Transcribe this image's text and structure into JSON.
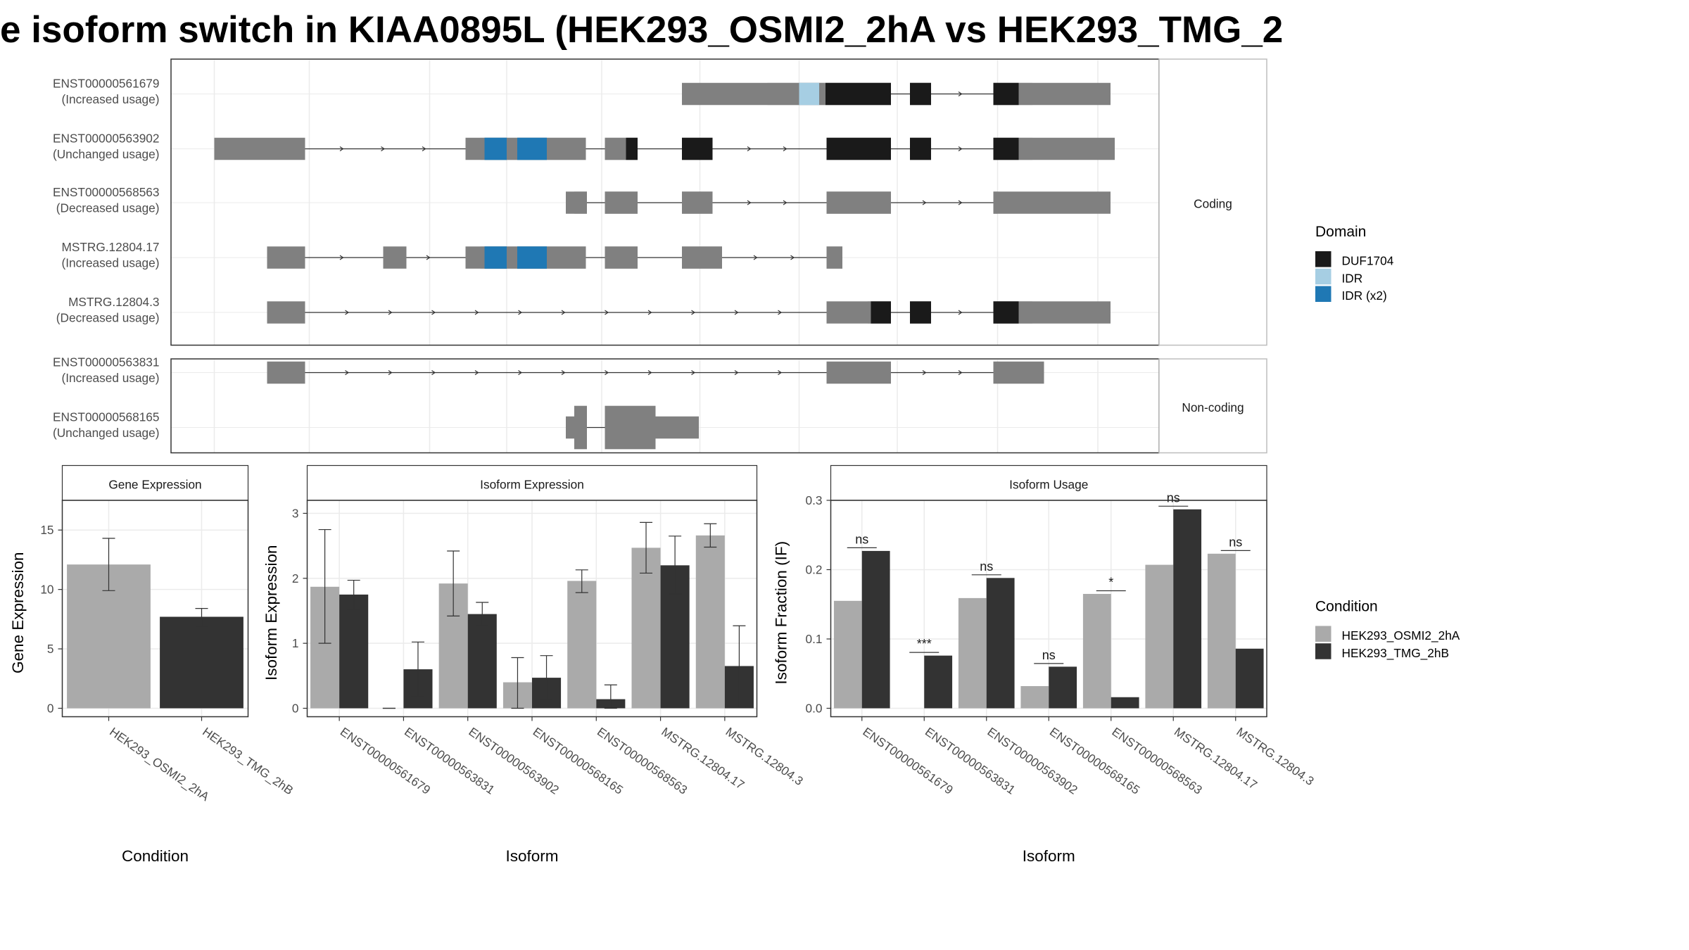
{
  "title": "e isoform switch in KIAA0895L (HEK293_OSMI2_2hA vs HEK293_TMG_2",
  "colors": {
    "exon": "#808080",
    "DUF1704": "#1a1a1a",
    "IDR": "#a6cee3",
    "IDR_x2": "#1f78b4",
    "cond1": "#aaaaaa",
    "cond2": "#333333"
  },
  "structure": {
    "facets": [
      "Coding",
      "Non-coding"
    ],
    "transcripts": [
      {
        "id": "ENST00000561679",
        "status": "(Increased usage)",
        "facet": "Coding"
      },
      {
        "id": "ENST00000563902",
        "status": "(Unchanged usage)",
        "facet": "Coding"
      },
      {
        "id": "ENST00000568563",
        "status": "(Decreased usage)",
        "facet": "Coding"
      },
      {
        "id": "MSTRG.12804.17",
        "status": "(Increased usage)",
        "facet": "Coding"
      },
      {
        "id": "MSTRG.12804.3",
        "status": "(Decreased usage)",
        "facet": "Coding"
      },
      {
        "id": "ENST00000563831",
        "status": "(Increased usage)",
        "facet": "Non-coding"
      },
      {
        "id": "ENST00000568165",
        "status": "(Unchanged usage)",
        "facet": "Non-coding"
      }
    ]
  },
  "legend_domain": {
    "title": "Domain",
    "items": [
      {
        "label": "DUF1704",
        "color": "#1a1a1a"
      },
      {
        "label": "IDR",
        "color": "#a6cee3"
      },
      {
        "label": "IDR (x2)",
        "color": "#1f78b4"
      }
    ]
  },
  "legend_condition": {
    "title": "Condition",
    "items": [
      {
        "label": "HEK293_OSMI2_2hA",
        "color": "#aaaaaa"
      },
      {
        "label": "HEK293_TMG_2hB",
        "color": "#333333"
      }
    ]
  },
  "chart_data": [
    {
      "type": "bar",
      "title": "Gene Expression",
      "xlabel": "Condition",
      "ylabel": "Gene Expression",
      "ylim": [
        0,
        17.5
      ],
      "yticks": [
        0,
        5,
        10,
        15
      ],
      "categories": [
        "HEK293_OSMI2_2hA",
        "HEK293_TMG_2hB"
      ],
      "values": [
        12.1,
        7.7
      ],
      "error_low": [
        9.9,
        6.9
      ],
      "error_high": [
        14.3,
        8.4
      ]
    },
    {
      "type": "bar",
      "title": "Isoform Expression",
      "xlabel": "Isoform",
      "ylabel": "Isoform Expression",
      "ylim": [
        0,
        3.2
      ],
      "yticks": [
        0,
        1,
        2,
        3
      ],
      "categories": [
        "ENST00000561679",
        "ENST00000563831",
        "ENST00000563902",
        "ENST00000568165",
        "ENST00000568563",
        "MSTRG.12804.17",
        "MSTRG.12804.3"
      ],
      "series": [
        {
          "name": "HEK293_OSMI2_2hA",
          "values": [
            1.87,
            0.0,
            1.92,
            0.4,
            1.96,
            2.47,
            2.66
          ],
          "error_low": [
            1.0,
            0.0,
            1.42,
            0.0,
            1.78,
            2.08,
            2.48
          ],
          "error_high": [
            2.75,
            0.0,
            2.42,
            0.78,
            2.13,
            2.86,
            2.84
          ]
        },
        {
          "name": "HEK293_TMG_2hB",
          "values": [
            1.75,
            0.6,
            1.45,
            0.47,
            0.14,
            2.2,
            0.65
          ],
          "error_low": [
            1.52,
            0.18,
            1.27,
            0.12,
            0.0,
            1.76,
            0.02
          ],
          "error_high": [
            1.97,
            1.02,
            1.63,
            0.81,
            0.36,
            2.65,
            1.27
          ]
        }
      ]
    },
    {
      "type": "bar",
      "title": "Isoform Usage",
      "xlabel": "Isoform",
      "ylabel": "Isoform Fraction (IF)",
      "ylim": [
        0,
        0.3
      ],
      "yticks": [
        "0.0",
        "0.1",
        "0.2",
        "0.3"
      ],
      "categories": [
        "ENST00000561679",
        "ENST00000563831",
        "ENST00000563902",
        "ENST00000568165",
        "ENST00000568563",
        "MSTRG.12804.17",
        "MSTRG.12804.3"
      ],
      "series": [
        {
          "name": "HEK293_OSMI2_2hA",
          "values": [
            0.155,
            0.0,
            0.159,
            0.032,
            0.165,
            0.207,
            0.223
          ]
        },
        {
          "name": "HEK293_TMG_2hB",
          "values": [
            0.227,
            0.076,
            0.188,
            0.06,
            0.016,
            0.287,
            0.086
          ]
        }
      ],
      "significance": [
        "ns",
        "***",
        "ns",
        "ns",
        "*",
        "ns",
        "ns"
      ]
    }
  ]
}
